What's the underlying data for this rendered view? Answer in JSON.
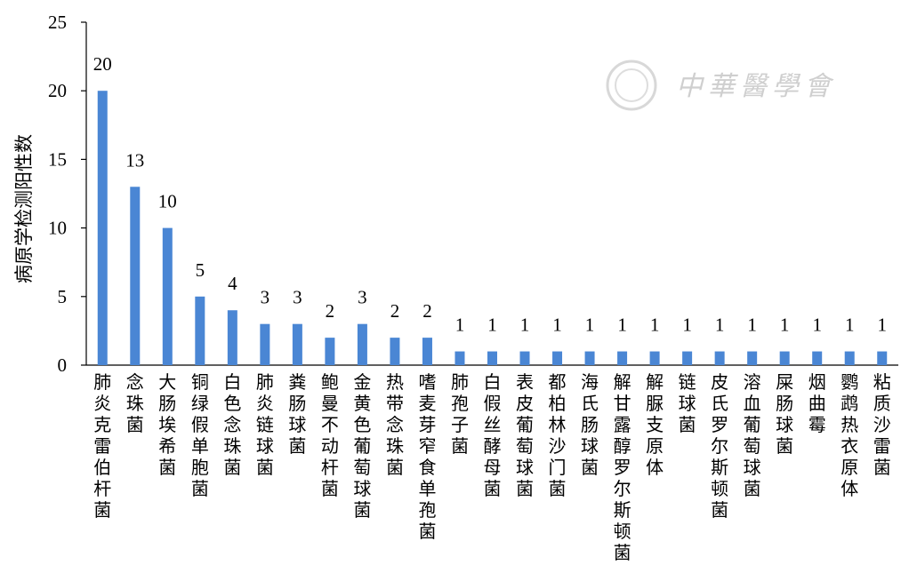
{
  "chart_data": {
    "type": "bar",
    "title": "",
    "xlabel": "",
    "ylabel": "病原学检测阳性数",
    "ylim": [
      0,
      25
    ],
    "yticks": [
      0,
      5,
      10,
      15,
      20,
      25
    ],
    "grid": false,
    "legend": "none",
    "bar_color": "#4a86d4",
    "categories": [
      "肺炎克雷伯杆菌",
      "念珠菌",
      "大肠埃希菌",
      "铜绿假单胞菌",
      "白色念珠菌",
      "肺炎链球菌",
      "粪肠球菌",
      "鲍曼不动杆菌",
      "金黄色葡萄球菌",
      "热带念珠菌",
      "嗜麦芽窄食单孢菌",
      "肺孢子菌",
      "白假丝酵母菌",
      "表皮葡萄球菌",
      "都柏林沙门菌",
      "海氏肠球菌",
      "解甘露醇罗尔斯顿菌",
      "解脲支原体",
      "链球菌",
      "皮氏罗尔斯顿菌",
      "溶血葡萄球菌",
      "屎肠球菌",
      "烟曲霉",
      "鹦鹉热衣原体",
      "粘质沙雷菌"
    ],
    "values": [
      20,
      13,
      10,
      5,
      4,
      3,
      3,
      2,
      3,
      2,
      2,
      1,
      1,
      1,
      1,
      1,
      1,
      1,
      1,
      1,
      1,
      1,
      1,
      1,
      1
    ]
  },
  "watermark": {
    "text": "中華醫學會",
    "logo": "chinese-medical-association-seal-icon"
  }
}
